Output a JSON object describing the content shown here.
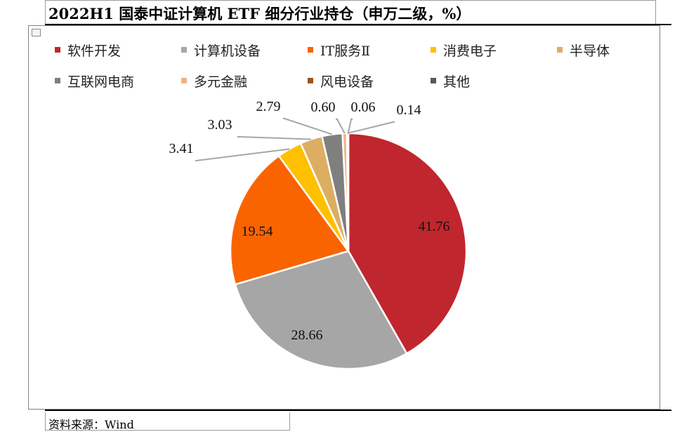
{
  "header": {
    "title": "2022H1 国泰中证计算机 ETF 细分行业持仓（申万二级，%）"
  },
  "footer": {
    "source": "资料来源：Wind"
  },
  "chart_data": {
    "type": "pie",
    "title": "2022H1 国泰中证计算机 ETF 细分行业持仓（申万二级，%）",
    "legend_position": "top",
    "slices": [
      {
        "name": "软件开发",
        "value": 41.76,
        "label": "41.76",
        "color": "#c0262d"
      },
      {
        "name": "计算机设备",
        "value": 28.66,
        "label": "28.66",
        "color": "#a6a6a6"
      },
      {
        "name": "IT服务Ⅱ",
        "value": 19.54,
        "label": "19.54",
        "color": "#fa6400"
      },
      {
        "name": "消费电子",
        "value": 3.41,
        "label": "3.41",
        "color": "#ffc000"
      },
      {
        "name": "半导体",
        "value": 3.03,
        "label": "3.03",
        "color": "#dcae62"
      },
      {
        "name": "互联网电商",
        "value": 2.79,
        "label": "2.79",
        "color": "#7f7f7f"
      },
      {
        "name": "多元金融",
        "value": 0.6,
        "label": "0.60",
        "color": "#f4b183"
      },
      {
        "name": "风电设备",
        "value": 0.06,
        "label": "0.06",
        "color": "#a0521a"
      },
      {
        "name": "其他",
        "value": 0.14,
        "label": "0.14",
        "color": "#595959"
      }
    ]
  }
}
